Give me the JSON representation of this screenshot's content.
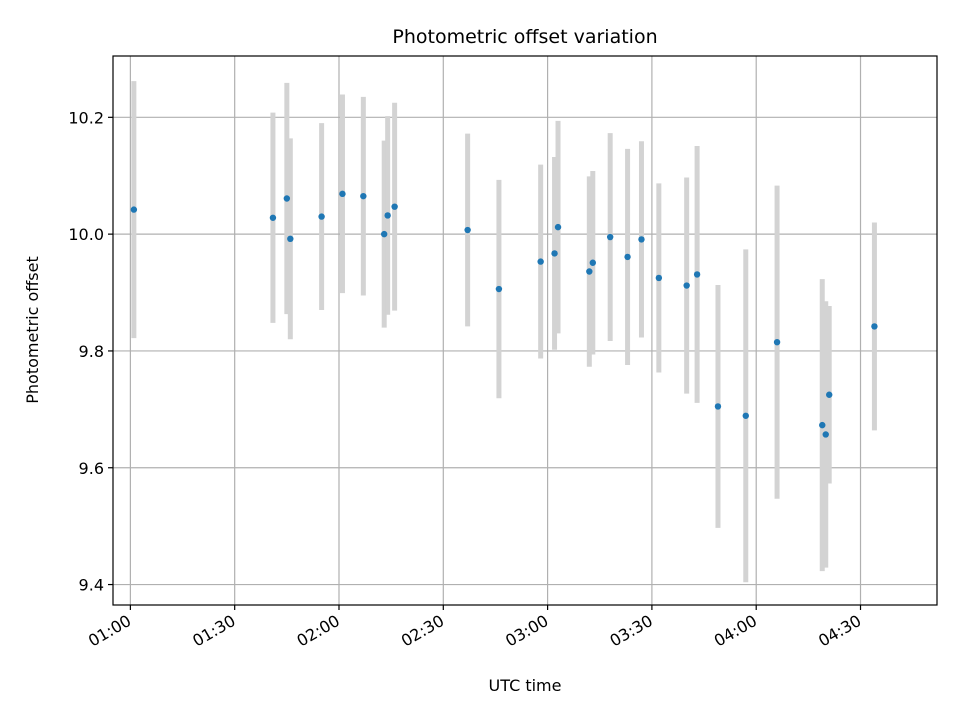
{
  "chart_data": {
    "type": "scatter",
    "title": "Photometric offset variation",
    "xlabel": "UTC time",
    "ylabel": "Photometric offset",
    "x_ticks": [
      "01:00",
      "01:30",
      "02:00",
      "02:30",
      "03:00",
      "03:30",
      "04:00",
      "04:30"
    ],
    "y_ticks": [
      "9.4",
      "9.6",
      "9.8",
      "10.0",
      "10.2"
    ],
    "xlim": [
      "00:55",
      "04:52"
    ],
    "ylim": [
      9.365,
      10.305
    ],
    "grid": true,
    "marker_color": "#1f77b4",
    "errorbar_color": "#d3d3d3",
    "points": [
      {
        "x": "01:01",
        "y": 10.042,
        "err": 0.22
      },
      {
        "x": "01:41",
        "y": 10.028,
        "err": 0.18
      },
      {
        "x": "01:45",
        "y": 10.061,
        "err": 0.198
      },
      {
        "x": "01:46",
        "y": 9.992,
        "err": 0.172
      },
      {
        "x": "01:55",
        "y": 10.03,
        "err": 0.16
      },
      {
        "x": "02:01",
        "y": 10.069,
        "err": 0.17
      },
      {
        "x": "02:07",
        "y": 10.065,
        "err": 0.17
      },
      {
        "x": "02:13",
        "y": 10.0,
        "err": 0.16
      },
      {
        "x": "02:14",
        "y": 10.032,
        "err": 0.17
      },
      {
        "x": "02:16",
        "y": 10.047,
        "err": 0.178
      },
      {
        "x": "02:37",
        "y": 10.007,
        "err": 0.165
      },
      {
        "x": "02:46",
        "y": 9.906,
        "err": 0.187
      },
      {
        "x": "02:58",
        "y": 9.953,
        "err": 0.166
      },
      {
        "x": "03:02",
        "y": 9.967,
        "err": 0.165
      },
      {
        "x": "03:03",
        "y": 10.012,
        "err": 0.182
      },
      {
        "x": "03:12",
        "y": 9.936,
        "err": 0.163
      },
      {
        "x": "03:13",
        "y": 9.951,
        "err": 0.157
      },
      {
        "x": "03:18",
        "y": 9.995,
        "err": 0.178
      },
      {
        "x": "03:23",
        "y": 9.961,
        "err": 0.185
      },
      {
        "x": "03:27",
        "y": 9.991,
        "err": 0.168
      },
      {
        "x": "03:32",
        "y": 9.925,
        "err": 0.162
      },
      {
        "x": "03:40",
        "y": 9.912,
        "err": 0.185
      },
      {
        "x": "03:43",
        "y": 9.931,
        "err": 0.22
      },
      {
        "x": "03:49",
        "y": 9.705,
        "err": 0.208
      },
      {
        "x": "03:57",
        "y": 9.689,
        "err": 0.285
      },
      {
        "x": "04:06",
        "y": 9.815,
        "err": 0.268
      },
      {
        "x": "04:19",
        "y": 9.673,
        "err": 0.25
      },
      {
        "x": "04:20",
        "y": 9.657,
        "err": 0.228
      },
      {
        "x": "04:21",
        "y": 9.725,
        "err": 0.152
      },
      {
        "x": "04:34",
        "y": 9.842,
        "err": 0.178
      }
    ]
  }
}
